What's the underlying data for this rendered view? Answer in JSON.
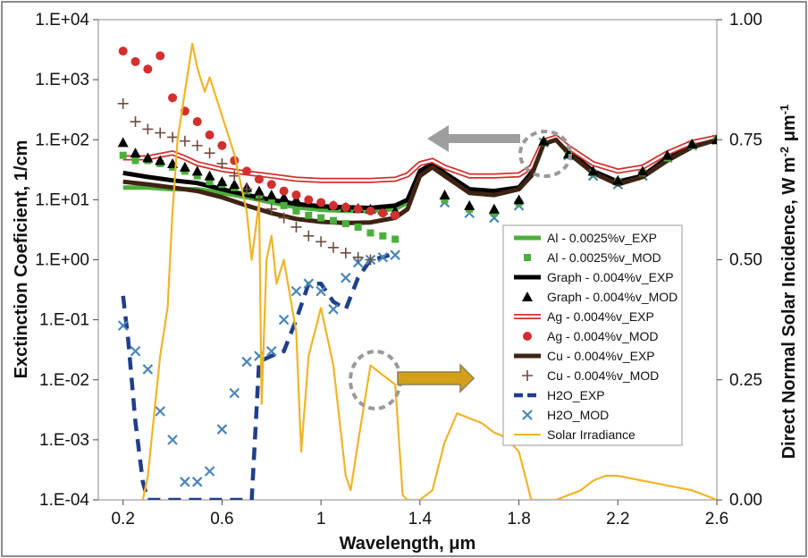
{
  "chart_data": {
    "type": "line",
    "xlabel": "Wavelength, μm",
    "ylabel": "Exctinction Coeficient, 1/cm",
    "y2label": "Direct Normal Solar Incidence, W m-2 μm-1",
    "xlim": [
      0.1,
      2.6
    ],
    "ylim_log": [
      0.0001,
      10000
    ],
    "y2lim": [
      0,
      1
    ],
    "y_scale": "log",
    "x_ticks": [
      "0.2",
      "0.6",
      "1",
      "1.4",
      "1.8",
      "2.2",
      "2.6"
    ],
    "y_ticks": [
      "1.E-04",
      "1.E-03",
      "1.E-02",
      "1.E-01",
      "1.E+00",
      "1.E+01",
      "1.E+02",
      "1.E+03",
      "1.E+04"
    ],
    "y2_ticks": [
      "0.00",
      "0.25",
      "0.50",
      "0.75",
      "1.00"
    ],
    "legend_position": "right-middle",
    "series": [
      {
        "name": "Al - 0.0025%v_EXP",
        "style": "line",
        "color": "#4caf3c",
        "axis": "left",
        "x": [
          0.2,
          0.3,
          0.4,
          0.5,
          0.6,
          0.7,
          0.8,
          0.9,
          1.0,
          1.1,
          1.2,
          1.3,
          1.35,
          1.4,
          1.45,
          1.5,
          1.6,
          1.7,
          1.8,
          1.85,
          1.9,
          1.95,
          2.0,
          2.1,
          2.2,
          2.3,
          2.4,
          2.5,
          2.6
        ],
        "y": [
          16,
          16,
          15,
          15,
          13,
          11,
          9,
          7.5,
          6.8,
          6.5,
          6.5,
          7,
          9,
          25,
          35,
          25,
          14,
          14,
          16,
          25,
          85,
          100,
          60,
          30,
          20,
          25,
          45,
          75,
          100
        ]
      },
      {
        "name": "Al - 0.0025%v_MOD",
        "style": "square",
        "color": "#4caf3c",
        "axis": "left",
        "x": [
          0.2,
          0.25,
          0.3,
          0.35,
          0.4,
          0.45,
          0.5,
          0.55,
          0.6,
          0.65,
          0.7,
          0.75,
          0.8,
          0.85,
          0.9,
          0.95,
          1.0,
          1.05,
          1.1,
          1.15,
          1.2,
          1.25,
          1.3,
          1.5,
          1.6,
          1.7,
          1.8,
          1.9,
          2.0,
          2.1,
          2.2,
          2.3,
          2.4,
          2.5,
          2.6
        ],
        "y": [
          55,
          45,
          45,
          40,
          35,
          30,
          25,
          20,
          18,
          16,
          14,
          12,
          10,
          8,
          6.5,
          5.5,
          5,
          4.5,
          4,
          3.5,
          2.8,
          2.5,
          2.2,
          10,
          7,
          6,
          9,
          90,
          55,
          28,
          20,
          28,
          50,
          80,
          100
        ]
      },
      {
        "name": "Graph - 0.004%v_EXP",
        "style": "line",
        "color": "#000000",
        "axis": "left",
        "x": [
          0.2,
          0.3,
          0.4,
          0.5,
          0.6,
          0.7,
          0.8,
          0.9,
          1.0,
          1.1,
          1.2,
          1.3,
          1.35,
          1.4,
          1.45,
          1.5,
          1.6,
          1.7,
          1.8,
          1.85,
          1.9,
          1.95,
          2.0,
          2.1,
          2.2,
          2.3,
          2.4,
          2.5,
          2.6
        ],
        "y": [
          28,
          24,
          21,
          19,
          15,
          12,
          10,
          8.5,
          7.8,
          7.5,
          7.3,
          8,
          10,
          30,
          40,
          28,
          15,
          14,
          16,
          28,
          90,
          105,
          65,
          30,
          20,
          25,
          50,
          80,
          100
        ]
      },
      {
        "name": "Graph - 0.004%v_MOD",
        "style": "triangle",
        "color": "#000000",
        "axis": "left",
        "x": [
          0.2,
          0.25,
          0.3,
          0.35,
          0.4,
          0.45,
          0.5,
          0.55,
          0.6,
          0.65,
          0.7,
          0.75,
          0.8,
          0.85,
          0.9,
          0.95,
          1.0,
          1.05,
          1.1,
          1.15,
          1.2,
          1.25,
          1.3,
          1.5,
          1.6,
          1.7,
          1.8,
          1.9,
          2.0,
          2.1,
          2.2,
          2.3,
          2.4,
          2.5,
          2.6
        ],
        "y": [
          90,
          60,
          50,
          45,
          40,
          35,
          30,
          25,
          20,
          18,
          16,
          14,
          12,
          11,
          10,
          9,
          8.5,
          8,
          7.5,
          7.2,
          7,
          6.8,
          6.5,
          12,
          8,
          7,
          10,
          95,
          58,
          30,
          21,
          30,
          55,
          85,
          100
        ]
      },
      {
        "name": "Ag - 0.004%v_EXP",
        "style": "hollow-line",
        "color": "#d32f2f",
        "axis": "left",
        "x": [
          0.2,
          0.3,
          0.35,
          0.4,
          0.45,
          0.5,
          0.6,
          0.7,
          0.8,
          0.9,
          1.0,
          1.1,
          1.2,
          1.3,
          1.35,
          1.4,
          1.45,
          1.5,
          1.6,
          1.7,
          1.8,
          1.85,
          1.9,
          1.95,
          2.0,
          2.1,
          2.2,
          2.3,
          2.4,
          2.5,
          2.6
        ],
        "y": [
          50,
          50,
          55,
          60,
          50,
          40,
          32,
          28,
          25,
          22,
          21,
          21,
          21,
          22,
          26,
          40,
          45,
          35,
          25,
          25,
          26,
          35,
          95,
          110,
          75,
          40,
          30,
          35,
          60,
          90,
          110
        ]
      },
      {
        "name": "Ag - 0.004%v_MOD",
        "style": "circle",
        "color": "#d32f2f",
        "axis": "left",
        "x": [
          0.2,
          0.25,
          0.3,
          0.35,
          0.4,
          0.45,
          0.5,
          0.55,
          0.6,
          0.65,
          0.7,
          0.75,
          0.8,
          0.85,
          0.9,
          0.95,
          1.0,
          1.05,
          1.1,
          1.15,
          1.2,
          1.25,
          1.3
        ],
        "y": [
          3000,
          2000,
          1500,
          2500,
          500,
          300,
          200,
          120,
          80,
          45,
          30,
          22,
          18,
          14,
          12,
          10,
          9,
          8,
          7.5,
          7,
          6.5,
          6,
          5.5
        ]
      },
      {
        "name": "Cu - 0.004%v_EXP",
        "style": "line",
        "color": "#3e2314",
        "axis": "left",
        "x": [
          0.2,
          0.3,
          0.4,
          0.5,
          0.6,
          0.7,
          0.8,
          0.9,
          1.0,
          1.1,
          1.2,
          1.3,
          1.35,
          1.4,
          1.45,
          1.5,
          1.6,
          1.7,
          1.8,
          1.85,
          1.9,
          1.95,
          2.0,
          2.1,
          2.2,
          2.3,
          2.4,
          2.5,
          2.6
        ],
        "y": [
          20,
          18,
          16,
          14,
          11,
          8,
          6,
          4.8,
          4.3,
          4.1,
          4.2,
          5,
          7,
          25,
          35,
          25,
          13,
          12,
          15,
          25,
          85,
          100,
          60,
          28,
          18,
          24,
          45,
          75,
          100
        ]
      },
      {
        "name": "Cu - 0.004%v_MOD",
        "style": "plus",
        "color": "#6d4c41",
        "axis": "left",
        "x": [
          0.2,
          0.25,
          0.3,
          0.35,
          0.4,
          0.45,
          0.5,
          0.55,
          0.6,
          0.65,
          0.7,
          0.75,
          0.8,
          0.85,
          0.9,
          0.95,
          1.0,
          1.05,
          1.1,
          1.15,
          1.2
        ],
        "y": [
          400,
          200,
          150,
          130,
          110,
          95,
          80,
          60,
          40,
          25,
          15,
          10,
          7,
          5,
          3.5,
          2.5,
          2,
          1.6,
          1.3,
          1.1,
          1.0
        ]
      },
      {
        "name": "H2O_EXP",
        "style": "dashed",
        "color": "#1f3f8a",
        "axis": "left",
        "x": [
          0.2,
          0.22,
          0.25,
          0.28,
          0.3,
          0.4,
          0.5,
          0.6,
          0.7,
          0.72,
          0.75,
          0.8,
          0.85,
          0.9,
          0.95,
          1.0,
          1.05,
          1.1,
          1.15,
          1.2,
          1.25,
          1.3
        ],
        "y": [
          0.25,
          0.05,
          0.002,
          0.0002,
          0.0001,
          0.0001,
          0.0001,
          0.0001,
          0.0001,
          0.0001,
          0.02,
          0.025,
          0.03,
          0.1,
          0.4,
          0.4,
          0.2,
          0.15,
          0.5,
          1,
          1.1,
          1.3
        ]
      },
      {
        "name": "H2O_MOD",
        "style": "x",
        "color": "#4a86b8",
        "axis": "left",
        "x": [
          0.2,
          0.25,
          0.3,
          0.35,
          0.4,
          0.45,
          0.5,
          0.55,
          0.6,
          0.65,
          0.7,
          0.75,
          0.8,
          0.85,
          0.9,
          0.95,
          1.0,
          1.05,
          1.1,
          1.15,
          1.2,
          1.25,
          1.3,
          1.5,
          1.6,
          1.7,
          1.8,
          1.9,
          2.0,
          2.1,
          2.2,
          2.3,
          2.4,
          2.5,
          2.6
        ],
        "y": [
          0.08,
          0.03,
          0.015,
          0.003,
          0.001,
          0.0002,
          0.0002,
          0.0003,
          0.0015,
          0.006,
          0.02,
          0.025,
          0.03,
          0.1,
          0.3,
          0.4,
          0.3,
          0.15,
          0.5,
          0.9,
          1.0,
          1.1,
          1.2,
          9,
          6,
          5,
          8,
          90,
          55,
          25,
          18,
          25,
          50,
          80,
          100
        ]
      },
      {
        "name": "Solar Irradiance",
        "style": "line",
        "color": "#f0b429",
        "axis": "right",
        "x": [
          0.28,
          0.3,
          0.32,
          0.35,
          0.38,
          0.4,
          0.42,
          0.45,
          0.48,
          0.5,
          0.53,
          0.55,
          0.6,
          0.65,
          0.7,
          0.72,
          0.75,
          0.76,
          0.78,
          0.8,
          0.82,
          0.85,
          0.9,
          0.92,
          0.95,
          1.0,
          1.05,
          1.1,
          1.12,
          1.15,
          1.2,
          1.25,
          1.3,
          1.33,
          1.35,
          1.4,
          1.45,
          1.5,
          1.55,
          1.6,
          1.65,
          1.7,
          1.75,
          1.8,
          1.85,
          1.9,
          1.95,
          2.0,
          2.05,
          2.1,
          2.15,
          2.2,
          2.25,
          2.3,
          2.35,
          2.4,
          2.45,
          2.5,
          2.55,
          2.6
        ],
        "y": [
          0.0,
          0.05,
          0.15,
          0.3,
          0.4,
          0.6,
          0.75,
          0.85,
          0.95,
          0.9,
          0.85,
          0.88,
          0.8,
          0.72,
          0.6,
          0.5,
          0.62,
          0.2,
          0.5,
          0.55,
          0.45,
          0.5,
          0.35,
          0.1,
          0.3,
          0.4,
          0.28,
          0.05,
          0.02,
          0.12,
          0.28,
          0.26,
          0.24,
          0.01,
          0.0,
          0.0,
          0.02,
          0.12,
          0.18,
          0.17,
          0.16,
          0.14,
          0.13,
          0.1,
          0.0,
          0.0,
          0.0,
          0.01,
          0.02,
          0.04,
          0.05,
          0.05,
          0.045,
          0.04,
          0.035,
          0.03,
          0.025,
          0.02,
          0.01,
          0.0
        ]
      }
    ]
  }
}
